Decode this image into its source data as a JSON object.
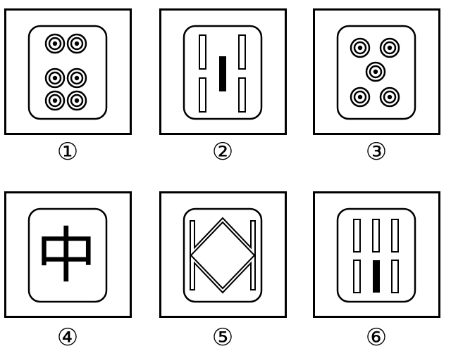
{
  "figures": [
    {
      "number": "①",
      "content": "six-circles"
    },
    {
      "number": "②",
      "content": "four-outline-bars-one-solid"
    },
    {
      "number": "③",
      "content": "five-circles"
    },
    {
      "number": "④",
      "content": "zhong-character",
      "character": "中"
    },
    {
      "number": "⑤",
      "content": "diamond-zigzag"
    },
    {
      "number": "⑥",
      "content": "five-outline-bars-one-solid"
    }
  ]
}
